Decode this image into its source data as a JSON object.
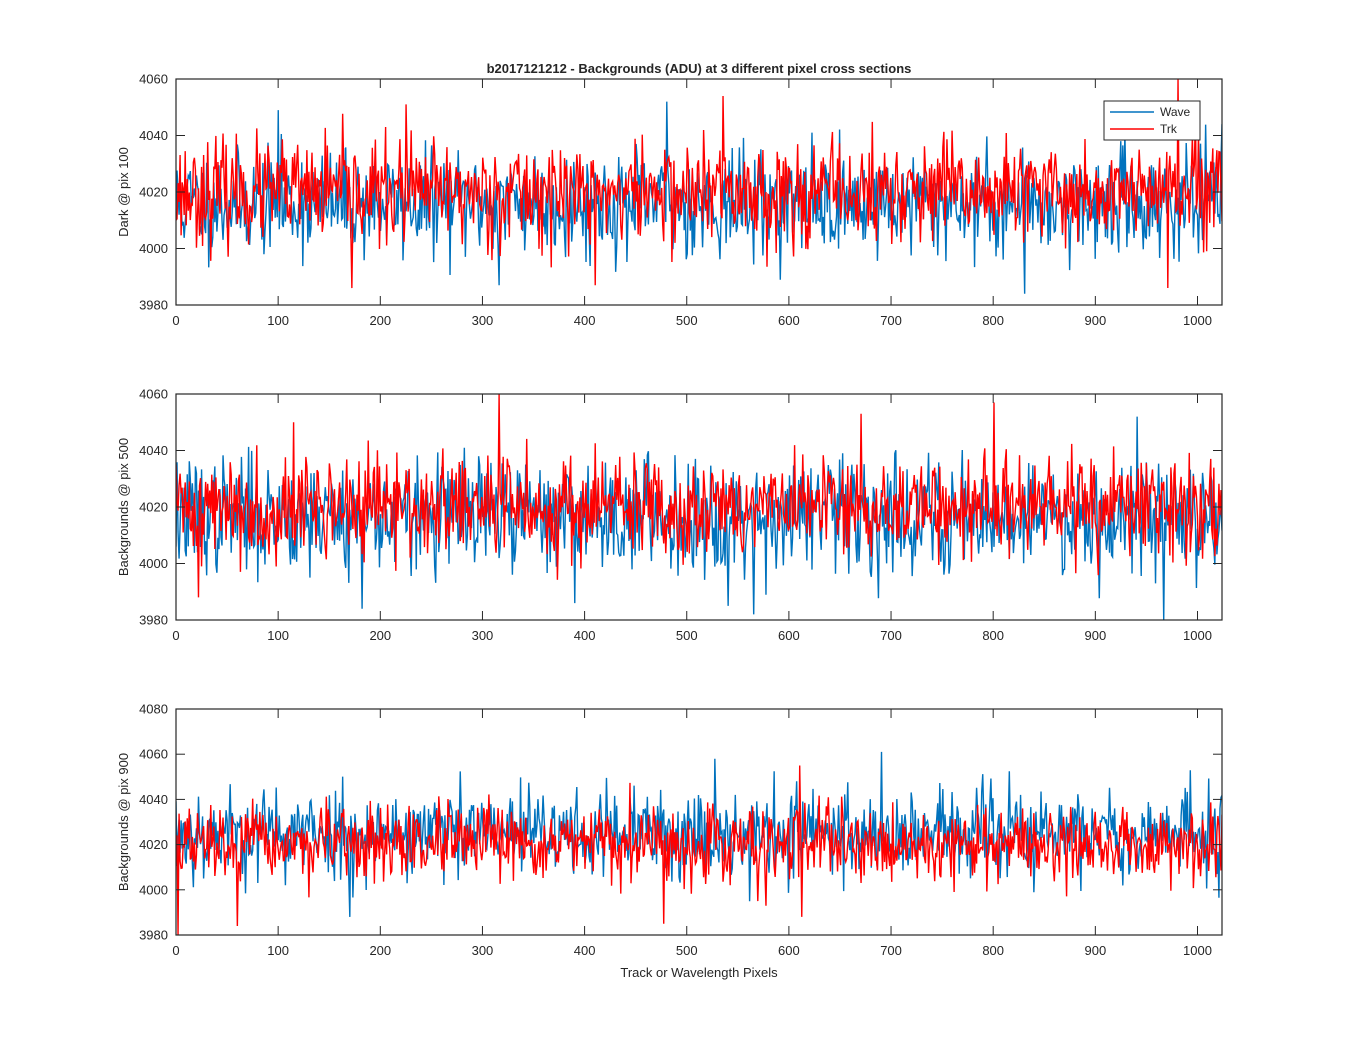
{
  "figure": {
    "title": "b2017121212 - Backgrounds (ADU) at 3 different pixel cross sections",
    "xlabel": "Track or Wavelength Pixels",
    "legend": {
      "placement": "top-right",
      "entries": [
        "Wave",
        "Trk"
      ]
    },
    "colors": {
      "Wave": "#0072BD",
      "Trk": "#FF0000",
      "axes": "#262626",
      "background": "#ffffff"
    }
  },
  "chart_data": [
    {
      "type": "line",
      "title": "b2017121212 - Backgrounds (ADU) at 3 different pixel cross sections",
      "xlabel": "",
      "ylabel": "Dark @ pix 100",
      "xlim": [
        0,
        1024
      ],
      "ylim": [
        3980,
        4060
      ],
      "xticks": [
        0,
        100,
        200,
        300,
        400,
        500,
        600,
        700,
        800,
        900,
        1000
      ],
      "yticks": [
        3980,
        4000,
        4020,
        4040,
        4060
      ],
      "grid": false,
      "legend": "top-right",
      "series": [
        {
          "name": "Wave",
          "color": "#0072BD",
          "x_range": [
            0,
            1024
          ],
          "n": 1024,
          "mean": 4016,
          "spread": 9,
          "seed": 11,
          "peaks": [
            [
              100,
              4049
            ],
            [
              316,
              3987
            ],
            [
              480,
              4052
            ],
            [
              830,
              3984
            ],
            [
              1023,
              4044
            ]
          ]
        },
        {
          "name": "Trk",
          "color": "#FF0000",
          "x_range": [
            0,
            1024
          ],
          "n": 1024,
          "mean": 4020,
          "spread": 9,
          "seed": 23,
          "peaks": [
            [
              172,
              3986
            ],
            [
              225,
              4051
            ],
            [
              410,
              3987
            ],
            [
              535,
              4054
            ],
            [
              970,
              3986
            ],
            [
              980,
              4060
            ]
          ]
        }
      ]
    },
    {
      "type": "line",
      "title": "",
      "xlabel": "",
      "ylabel": "Backgrounds @ pix 500",
      "xlim": [
        0,
        1024
      ],
      "ylim": [
        3980,
        4060
      ],
      "xticks": [
        0,
        100,
        200,
        300,
        400,
        500,
        600,
        700,
        800,
        900,
        1000
      ],
      "yticks": [
        3980,
        4000,
        4020,
        4040,
        4060
      ],
      "grid": false,
      "series": [
        {
          "name": "Wave",
          "color": "#0072BD",
          "x_range": [
            0,
            1024
          ],
          "n": 1024,
          "mean": 4017,
          "spread": 10,
          "seed": 37,
          "peaks": [
            [
              182,
              3984
            ],
            [
              540,
              3985
            ],
            [
              565,
              3982
            ],
            [
              940,
              4052
            ],
            [
              966,
              3980
            ]
          ]
        },
        {
          "name": "Trk",
          "color": "#FF0000",
          "x_range": [
            0,
            1024
          ],
          "n": 1024,
          "mean": 4020,
          "spread": 9,
          "seed": 41,
          "peaks": [
            [
              22,
              3988
            ],
            [
              316,
              4060
            ],
            [
              115,
              4050
            ],
            [
              800,
              4057
            ],
            [
              670,
              4053
            ]
          ]
        }
      ]
    },
    {
      "type": "line",
      "title": "",
      "xlabel": "Track or Wavelength Pixels",
      "ylabel": "Backgrounds @ pix 900",
      "xlim": [
        0,
        1024
      ],
      "ylim": [
        3980,
        4080
      ],
      "xticks": [
        0,
        100,
        200,
        300,
        400,
        500,
        600,
        700,
        800,
        900,
        1000
      ],
      "yticks": [
        3980,
        4000,
        4020,
        4040,
        4060,
        4080
      ],
      "grid": false,
      "series": [
        {
          "name": "Wave",
          "color": "#0072BD",
          "x_range": [
            0,
            1024
          ],
          "n": 1024,
          "mean": 4025,
          "spread": 10,
          "seed": 53,
          "peaks": [
            [
              527,
              4058
            ],
            [
              690,
              4061
            ],
            [
              170,
              3988
            ]
          ]
        },
        {
          "name": "Trk",
          "color": "#FF0000",
          "x_range": [
            0,
            1024
          ],
          "n": 1024,
          "mean": 4020,
          "spread": 8,
          "seed": 67,
          "peaks": [
            [
              2,
              3980
            ],
            [
              60,
              3984
            ],
            [
              477,
              3985
            ],
            [
              612,
              3988
            ],
            [
              610,
              4055
            ]
          ]
        }
      ]
    }
  ]
}
